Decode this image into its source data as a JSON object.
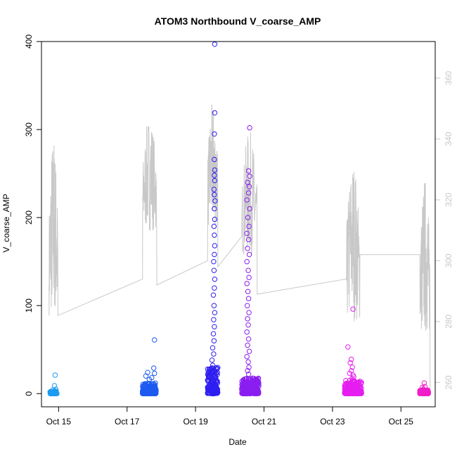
{
  "chart_data": {
    "type": "scatter",
    "title": "ATOM3 Northbound V_coarse_AMP",
    "xlabel": "Date",
    "ylabel": "V_coarse_AMP",
    "x_ticks": [
      "Oct 15",
      "Oct 17",
      "Oct 19",
      "Oct 21",
      "Oct 23",
      "Oct 25"
    ],
    "x_tick_days": [
      15,
      17,
      19,
      21,
      23,
      25
    ],
    "xlim_days": [
      14.5,
      26.0
    ],
    "ylim": [
      -15,
      400
    ],
    "y_ticks": [
      0,
      100,
      200,
      300,
      400
    ],
    "y2lim": [
      252,
      372
    ],
    "y2_ticks": [
      260,
      280,
      300,
      320,
      340,
      360
    ],
    "grid": false,
    "legend": "none",
    "point_clusters": [
      {
        "day_start": 14.75,
        "day_end": 14.95,
        "color": "#1e9bf0",
        "base_max": 3,
        "points": [
          [
            14.9,
            21
          ],
          [
            14.88,
            9
          ],
          [
            14.92,
            5
          ],
          [
            14.82,
            4
          ]
        ]
      },
      {
        "day_start": 17.45,
        "day_end": 17.85,
        "color": "#1e5af0",
        "base_max": 12,
        "points": [
          [
            17.8,
            61
          ],
          [
            17.78,
            29
          ],
          [
            17.8,
            23
          ],
          [
            17.6,
            24
          ],
          [
            17.55,
            20
          ],
          [
            17.72,
            18
          ],
          [
            17.65,
            16
          ]
        ]
      },
      {
        "day_start": 19.35,
        "day_end": 19.65,
        "color": "#2e1ef0",
        "base_max": 30,
        "points": [
          [
            19.56,
            397
          ],
          [
            19.56,
            319
          ],
          [
            19.55,
            295
          ],
          [
            19.55,
            266
          ],
          [
            19.56,
            254
          ],
          [
            19.55,
            248
          ],
          [
            19.56,
            242
          ],
          [
            19.54,
            232
          ],
          [
            19.55,
            226
          ],
          [
            19.57,
            219
          ],
          [
            19.55,
            210
          ],
          [
            19.56,
            198
          ],
          [
            19.54,
            190
          ],
          [
            19.55,
            180
          ],
          [
            19.56,
            168
          ],
          [
            19.55,
            158
          ],
          [
            19.53,
            150
          ],
          [
            19.54,
            140
          ],
          [
            19.56,
            130
          ],
          [
            19.55,
            120
          ],
          [
            19.52,
            112
          ],
          [
            19.54,
            100
          ],
          [
            19.56,
            92
          ],
          [
            19.53,
            84
          ],
          [
            19.55,
            76
          ],
          [
            19.52,
            68
          ],
          [
            19.54,
            60
          ],
          [
            19.5,
            52
          ],
          [
            19.53,
            45
          ],
          [
            19.48,
            38
          ],
          [
            19.5,
            32
          ],
          [
            19.45,
            28
          ],
          [
            19.4,
            25
          ]
        ]
      },
      {
        "day_start": 20.35,
        "day_end": 20.85,
        "color": "#8a1ef0",
        "base_max": 18,
        "points": [
          [
            20.58,
            302
          ],
          [
            20.55,
            253
          ],
          [
            20.58,
            247
          ],
          [
            20.52,
            240
          ],
          [
            20.57,
            235
          ],
          [
            20.55,
            228
          ],
          [
            20.5,
            220
          ],
          [
            20.58,
            210
          ],
          [
            20.53,
            200
          ],
          [
            20.56,
            190
          ],
          [
            20.5,
            182
          ],
          [
            20.55,
            175
          ],
          [
            20.52,
            165
          ],
          [
            20.57,
            158
          ],
          [
            20.5,
            150
          ],
          [
            20.54,
            140
          ],
          [
            20.56,
            132
          ],
          [
            20.5,
            125
          ],
          [
            20.53,
            116
          ],
          [
            20.55,
            108
          ],
          [
            20.51,
            100
          ],
          [
            20.56,
            92
          ],
          [
            20.52,
            85
          ],
          [
            20.54,
            78
          ],
          [
            20.5,
            70
          ],
          [
            20.55,
            62
          ],
          [
            20.52,
            55
          ],
          [
            20.57,
            48
          ],
          [
            20.5,
            42
          ],
          [
            20.54,
            36
          ],
          [
            20.56,
            30
          ],
          [
            20.52,
            26
          ],
          [
            20.55,
            22
          ]
        ]
      },
      {
        "day_start": 23.35,
        "day_end": 23.85,
        "color": "#e51ef0",
        "base_max": 15,
        "points": [
          [
            23.45,
            53
          ],
          [
            23.6,
            96
          ],
          [
            23.55,
            39
          ],
          [
            23.52,
            35
          ],
          [
            23.58,
            30
          ],
          [
            23.55,
            26
          ],
          [
            23.5,
            23
          ],
          [
            23.6,
            21
          ],
          [
            23.62,
            19
          ],
          [
            23.57,
            17
          ]
        ]
      },
      {
        "day_start": 25.55,
        "day_end": 25.8,
        "color": "#f01ec8",
        "base_max": 4,
        "points": [
          [
            25.62,
            7
          ],
          [
            25.68,
            12
          ],
          [
            25.7,
            8
          ],
          [
            25.65,
            5
          ]
        ]
      }
    ],
    "line_series": {
      "color": "#c8c8c8",
      "bursts": [
        {
          "day_start": 14.72,
          "day_end": 14.98,
          "lo": 262,
          "hi": 342,
          "entry": 292,
          "exit": 282
        },
        {
          "day_start": 17.45,
          "day_end": 17.87,
          "lo": 297,
          "hi": 348,
          "entry": 294,
          "exit": 292
        },
        {
          "day_start": 19.35,
          "day_end": 19.65,
          "lo": 297,
          "hi": 352,
          "entry": 300,
          "exit": 298
        },
        {
          "day_start": 20.35,
          "day_end": 20.8,
          "lo": 288,
          "hi": 343,
          "entry": 308,
          "exit": 289
        },
        {
          "day_start": 23.4,
          "day_end": 23.8,
          "lo": 262,
          "hi": 334,
          "entry": 294,
          "exit": 302
        },
        {
          "day_start": 25.55,
          "day_end": 25.85,
          "lo": 258,
          "hi": 328,
          "entry": 302,
          "exit": 258
        }
      ]
    }
  }
}
